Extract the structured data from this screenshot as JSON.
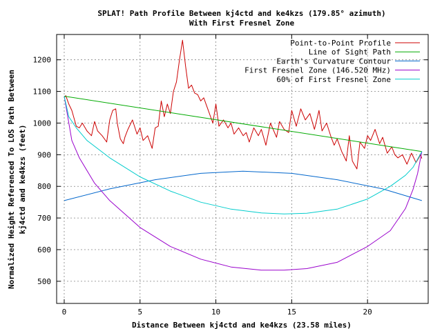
{
  "chart_data": {
    "type": "line",
    "title": "SPLAT! Path Profile Between kj4ctd and ke4kzs (179.85° azimuth)",
    "subtitle": "With First Fresnel Zone",
    "xlabel": "Distance Between kj4ctd and ke4kzs (23.58 miles)",
    "ylabel": "Normalized Height Referenced To LOS Path Between kj4ctd and ke4kzs (feet)",
    "xlim": [
      -0.5,
      24
    ],
    "ylim": [
      430,
      1280
    ],
    "xticks": [
      0,
      5,
      10,
      15,
      20
    ],
    "yticks": [
      500,
      600,
      700,
      800,
      900,
      1000,
      1100,
      1200
    ],
    "grid": true,
    "legend_position": "top-right",
    "series": [
      {
        "name": "Point-to-Point Profile",
        "color": "#cc0000",
        "x": [
          0,
          0.1,
          0.3,
          0.5,
          0.8,
          1.0,
          1.2,
          1.5,
          1.8,
          2.0,
          2.2,
          2.5,
          2.8,
          3.0,
          3.2,
          3.4,
          3.5,
          3.7,
          3.9,
          4.0,
          4.2,
          4.5,
          4.8,
          5.0,
          5.2,
          5.5,
          5.8,
          6.0,
          6.2,
          6.4,
          6.6,
          6.8,
          7.0,
          7.2,
          7.4,
          7.6,
          7.8,
          8.0,
          8.2,
          8.4,
          8.6,
          8.8,
          9.0,
          9.2,
          9.5,
          9.8,
          10.0,
          10.2,
          10.5,
          10.8,
          11.0,
          11.2,
          11.5,
          11.8,
          12.0,
          12.2,
          12.5,
          12.8,
          13.0,
          13.3,
          13.6,
          14.0,
          14.2,
          14.5,
          14.8,
          15.0,
          15.3,
          15.6,
          15.9,
          16.2,
          16.5,
          16.8,
          17.0,
          17.3,
          17.6,
          17.8,
          18.0,
          18.3,
          18.6,
          18.8,
          19.0,
          19.3,
          19.5,
          19.8,
          20.0,
          20.2,
          20.5,
          20.8,
          21.0,
          21.3,
          21.6,
          21.8,
          22.0,
          22.3,
          22.6,
          22.9,
          23.2,
          23.5,
          23.58
        ],
        "y": [
          1080,
          1087,
          1060,
          1040,
          990,
          985,
          1000,
          975,
          960,
          1005,
          975,
          960,
          940,
          1010,
          1040,
          1045,
          1000,
          950,
          935,
          955,
          980,
          1010,
          965,
          985,
          945,
          960,
          920,
          985,
          990,
          1070,
          1020,
          1060,
          1030,
          1100,
          1130,
          1200,
          1262,
          1180,
          1110,
          1120,
          1095,
          1090,
          1070,
          1080,
          1040,
          1000,
          1060,
          990,
          1010,
          985,
          1000,
          965,
          985,
          960,
          970,
          940,
          985,
          960,
          980,
          930,
          1000,
          955,
          1005,
          980,
          970,
          1040,
          990,
          1045,
          1010,
          1030,
          980,
          1040,
          975,
          1000,
          955,
          930,
          950,
          910,
          880,
          960,
          880,
          855,
          940,
          920,
          960,
          945,
          980,
          935,
          955,
          905,
          925,
          900,
          890,
          900,
          870,
          905,
          875,
          900,
          888
        ]
      },
      {
        "name": "Line of Sight Path",
        "color": "#00aa00",
        "x": [
          0,
          23.58
        ],
        "y": [
          1085,
          910
        ]
      },
      {
        "name": "Earth's Curvature Contour",
        "color": "#0066cc",
        "x": [
          0,
          3,
          6,
          9,
          11.79,
          15,
          18,
          21,
          23.58
        ],
        "y": [
          755,
          792,
          821,
          841,
          848,
          841,
          821,
          792,
          755
        ]
      },
      {
        "name": "First Fresnel Zone (146.520 MHz)",
        "color": "#9900cc",
        "x": [
          0,
          0.5,
          1.0,
          2.0,
          3.0,
          5.0,
          7.0,
          9.0,
          11.0,
          13.0,
          14.5,
          16.0,
          18.0,
          20.0,
          21.5,
          22.5,
          23.0,
          23.3,
          23.58
        ],
        "y": [
          1085,
          945,
          890,
          810,
          755,
          670,
          610,
          570,
          545,
          535,
          535,
          540,
          560,
          610,
          660,
          730,
          790,
          840,
          910
        ]
      },
      {
        "name": "60% of First Fresnel Zone",
        "color": "#00cccc",
        "x": [
          0,
          0.3,
          0.8,
          1.5,
          3.0,
          5.0,
          7.0,
          9.0,
          11.0,
          13.0,
          14.5,
          16.0,
          18.0,
          20.0,
          21.5,
          22.5,
          23.0,
          23.58
        ],
        "y": [
          1085,
          1020,
          985,
          945,
          890,
          830,
          785,
          750,
          728,
          716,
          713,
          715,
          728,
          760,
          800,
          835,
          860,
          910
        ]
      }
    ]
  }
}
